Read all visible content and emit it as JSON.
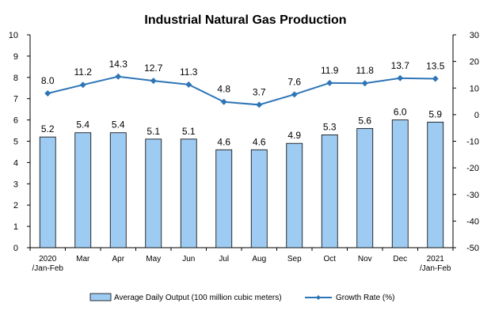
{
  "chart_data": {
    "type": "bar",
    "title": "Industrial Natural Gas Production",
    "categories": [
      [
        "2020",
        "/Jan-Feb"
      ],
      [
        "Mar"
      ],
      [
        "Apr"
      ],
      [
        "May"
      ],
      [
        "Jun"
      ],
      [
        "Jul"
      ],
      [
        "Aug"
      ],
      [
        "Sep"
      ],
      [
        "Oct"
      ],
      [
        "Nov"
      ],
      [
        "Dec"
      ],
      [
        "2021",
        "/Jan-Feb"
      ]
    ],
    "series": [
      {
        "name": "Average Daily Output (100 million cubic meters)",
        "type": "bar",
        "axis": "left",
        "color": "#9ecbf2",
        "values": [
          5.2,
          5.4,
          5.4,
          5.1,
          5.1,
          4.6,
          4.6,
          4.9,
          5.3,
          5.6,
          6.0,
          5.9
        ],
        "labels": [
          "5.2",
          "5.4",
          "5.4",
          "5.1",
          "5.1",
          "4.6",
          "4.6",
          "4.9",
          "5.3",
          "5.6",
          "6.0",
          "5.9"
        ]
      },
      {
        "name": "Growth Rate (%)",
        "type": "line",
        "axis": "right",
        "color": "#2e75b6",
        "values": [
          8.0,
          11.2,
          14.3,
          12.7,
          11.3,
          4.8,
          3.7,
          7.6,
          11.9,
          11.8,
          13.7,
          13.5
        ],
        "labels": [
          "8.0",
          "11.2",
          "14.3",
          "12.7",
          "11.3",
          "4.8",
          "3.7",
          "7.6",
          "11.9",
          "11.8",
          "13.7",
          "13.5"
        ]
      }
    ],
    "y_left": {
      "min": 0,
      "max": 10,
      "step": 1
    },
    "y_right": {
      "min": -50,
      "max": 30,
      "step": 10
    },
    "grid": false,
    "legend_position": "bottom"
  }
}
